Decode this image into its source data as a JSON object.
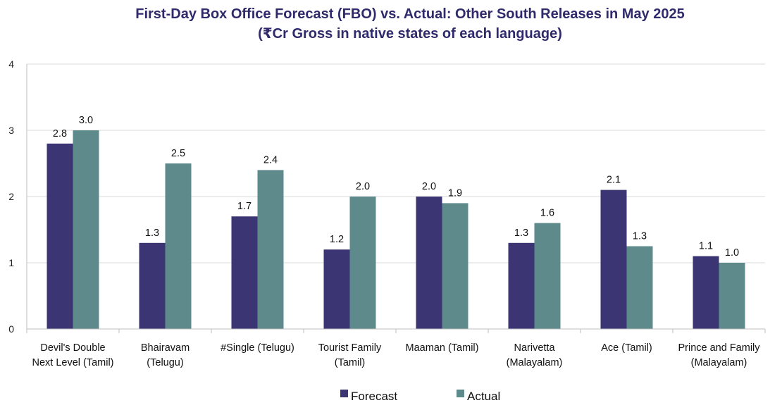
{
  "chart_data": {
    "type": "bar",
    "title": "First-Day Box Office Forecast (FBO) vs. Actual: Other South Releases in May 2025",
    "subtitle": "(₹Cr Gross in native states of each language)",
    "xlabel": "",
    "ylabel": "",
    "ylim": [
      0,
      4
    ],
    "yticks": [
      0,
      1,
      2,
      3,
      4
    ],
    "grid": true,
    "legend_position": "bottom",
    "categories": [
      [
        "Devil's Double",
        "Next Level (Tamil)"
      ],
      [
        "Bhairavam",
        "(Telugu)"
      ],
      [
        "#Single (Telugu)"
      ],
      [
        "Tourist Family",
        "(Tamil)"
      ],
      [
        "Maaman (Tamil)"
      ],
      [
        "Narivetta",
        "(Malayalam)"
      ],
      [
        "Ace (Tamil)"
      ],
      [
        "Prince and Family",
        "(Malayalam)"
      ]
    ],
    "series": [
      {
        "name": "Forecast",
        "color": "#3b3573",
        "values": [
          2.8,
          1.3,
          1.7,
          1.2,
          2.0,
          1.3,
          2.1,
          1.1
        ],
        "labels": [
          "2.8",
          "1.3",
          "1.7",
          "1.2",
          "2.0",
          "1.3",
          "2.1",
          "1.1"
        ]
      },
      {
        "name": "Actual",
        "color": "#5f8a8b",
        "values": [
          3.0,
          2.5,
          2.4,
          2.0,
          1.9,
          1.6,
          1.25,
          1.0
        ],
        "labels": [
          "3.0",
          "2.5",
          "2.4",
          "2.0",
          "1.9",
          "1.6",
          "1.3",
          "1.0"
        ]
      }
    ]
  }
}
